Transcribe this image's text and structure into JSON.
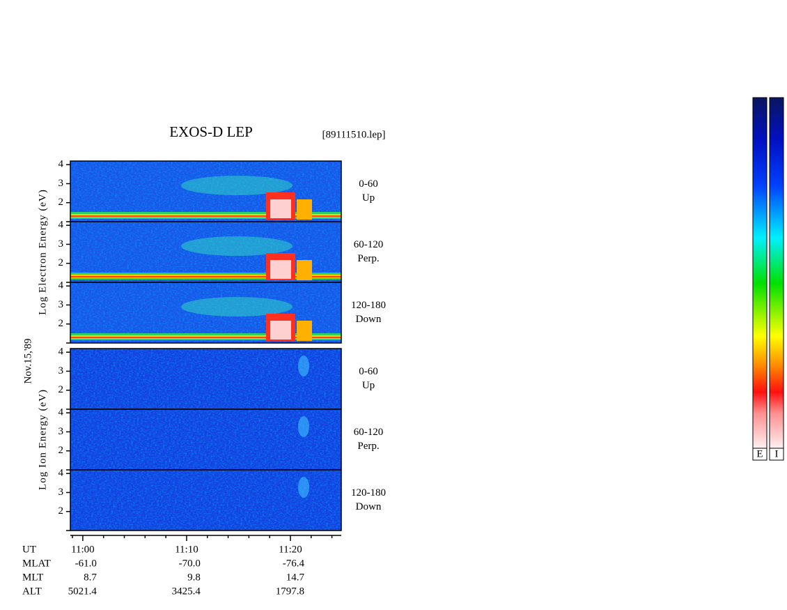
{
  "chart_data": {
    "type": "spectrogram",
    "title": "EXOS-D LEP",
    "file": "[89111510.lep]",
    "date": "Nov.15,'89",
    "groups": [
      {
        "label": "Log Electron Energy (eV)",
        "kind": "electron",
        "panels": [
          {
            "angle": "0-60",
            "dir": "Up"
          },
          {
            "angle": "60-120",
            "dir": "Perp."
          },
          {
            "angle": "120-180",
            "dir": "Down"
          }
        ]
      },
      {
        "label": "Log Ion Energy (eV)",
        "kind": "ion",
        "panels": [
          {
            "angle": "0-60",
            "dir": "Up"
          },
          {
            "angle": "60-120",
            "dir": "Perp."
          },
          {
            "angle": "120-180",
            "dir": "Down"
          }
        ]
      }
    ],
    "ylim": [
      1,
      4.19
    ],
    "yticks": [
      2,
      3,
      4
    ],
    "xlim": [
      -1.2,
      24.9
    ],
    "xticks": [
      {
        "value": 0,
        "label": "11:00"
      },
      {
        "value": 10,
        "label": "11:10"
      },
      {
        "value": 20,
        "label": "11:20"
      }
    ],
    "xminorticks": [
      -1,
      2,
      4,
      6,
      8,
      12,
      14,
      16,
      18,
      22,
      24
    ],
    "xlabel": "UT",
    "orbit_rows": [
      {
        "name": "MLAT",
        "values": [
          "-61.0",
          "-70.0",
          "-76.4"
        ]
      },
      {
        "name": "MLT",
        "values": [
          "8.7",
          "9.8",
          "14.7"
        ]
      },
      {
        "name": "ALT",
        "values": [
          "5021.4",
          "3425.4",
          "1797.8"
        ]
      }
    ],
    "colorbars": [
      "E",
      "I"
    ]
  }
}
